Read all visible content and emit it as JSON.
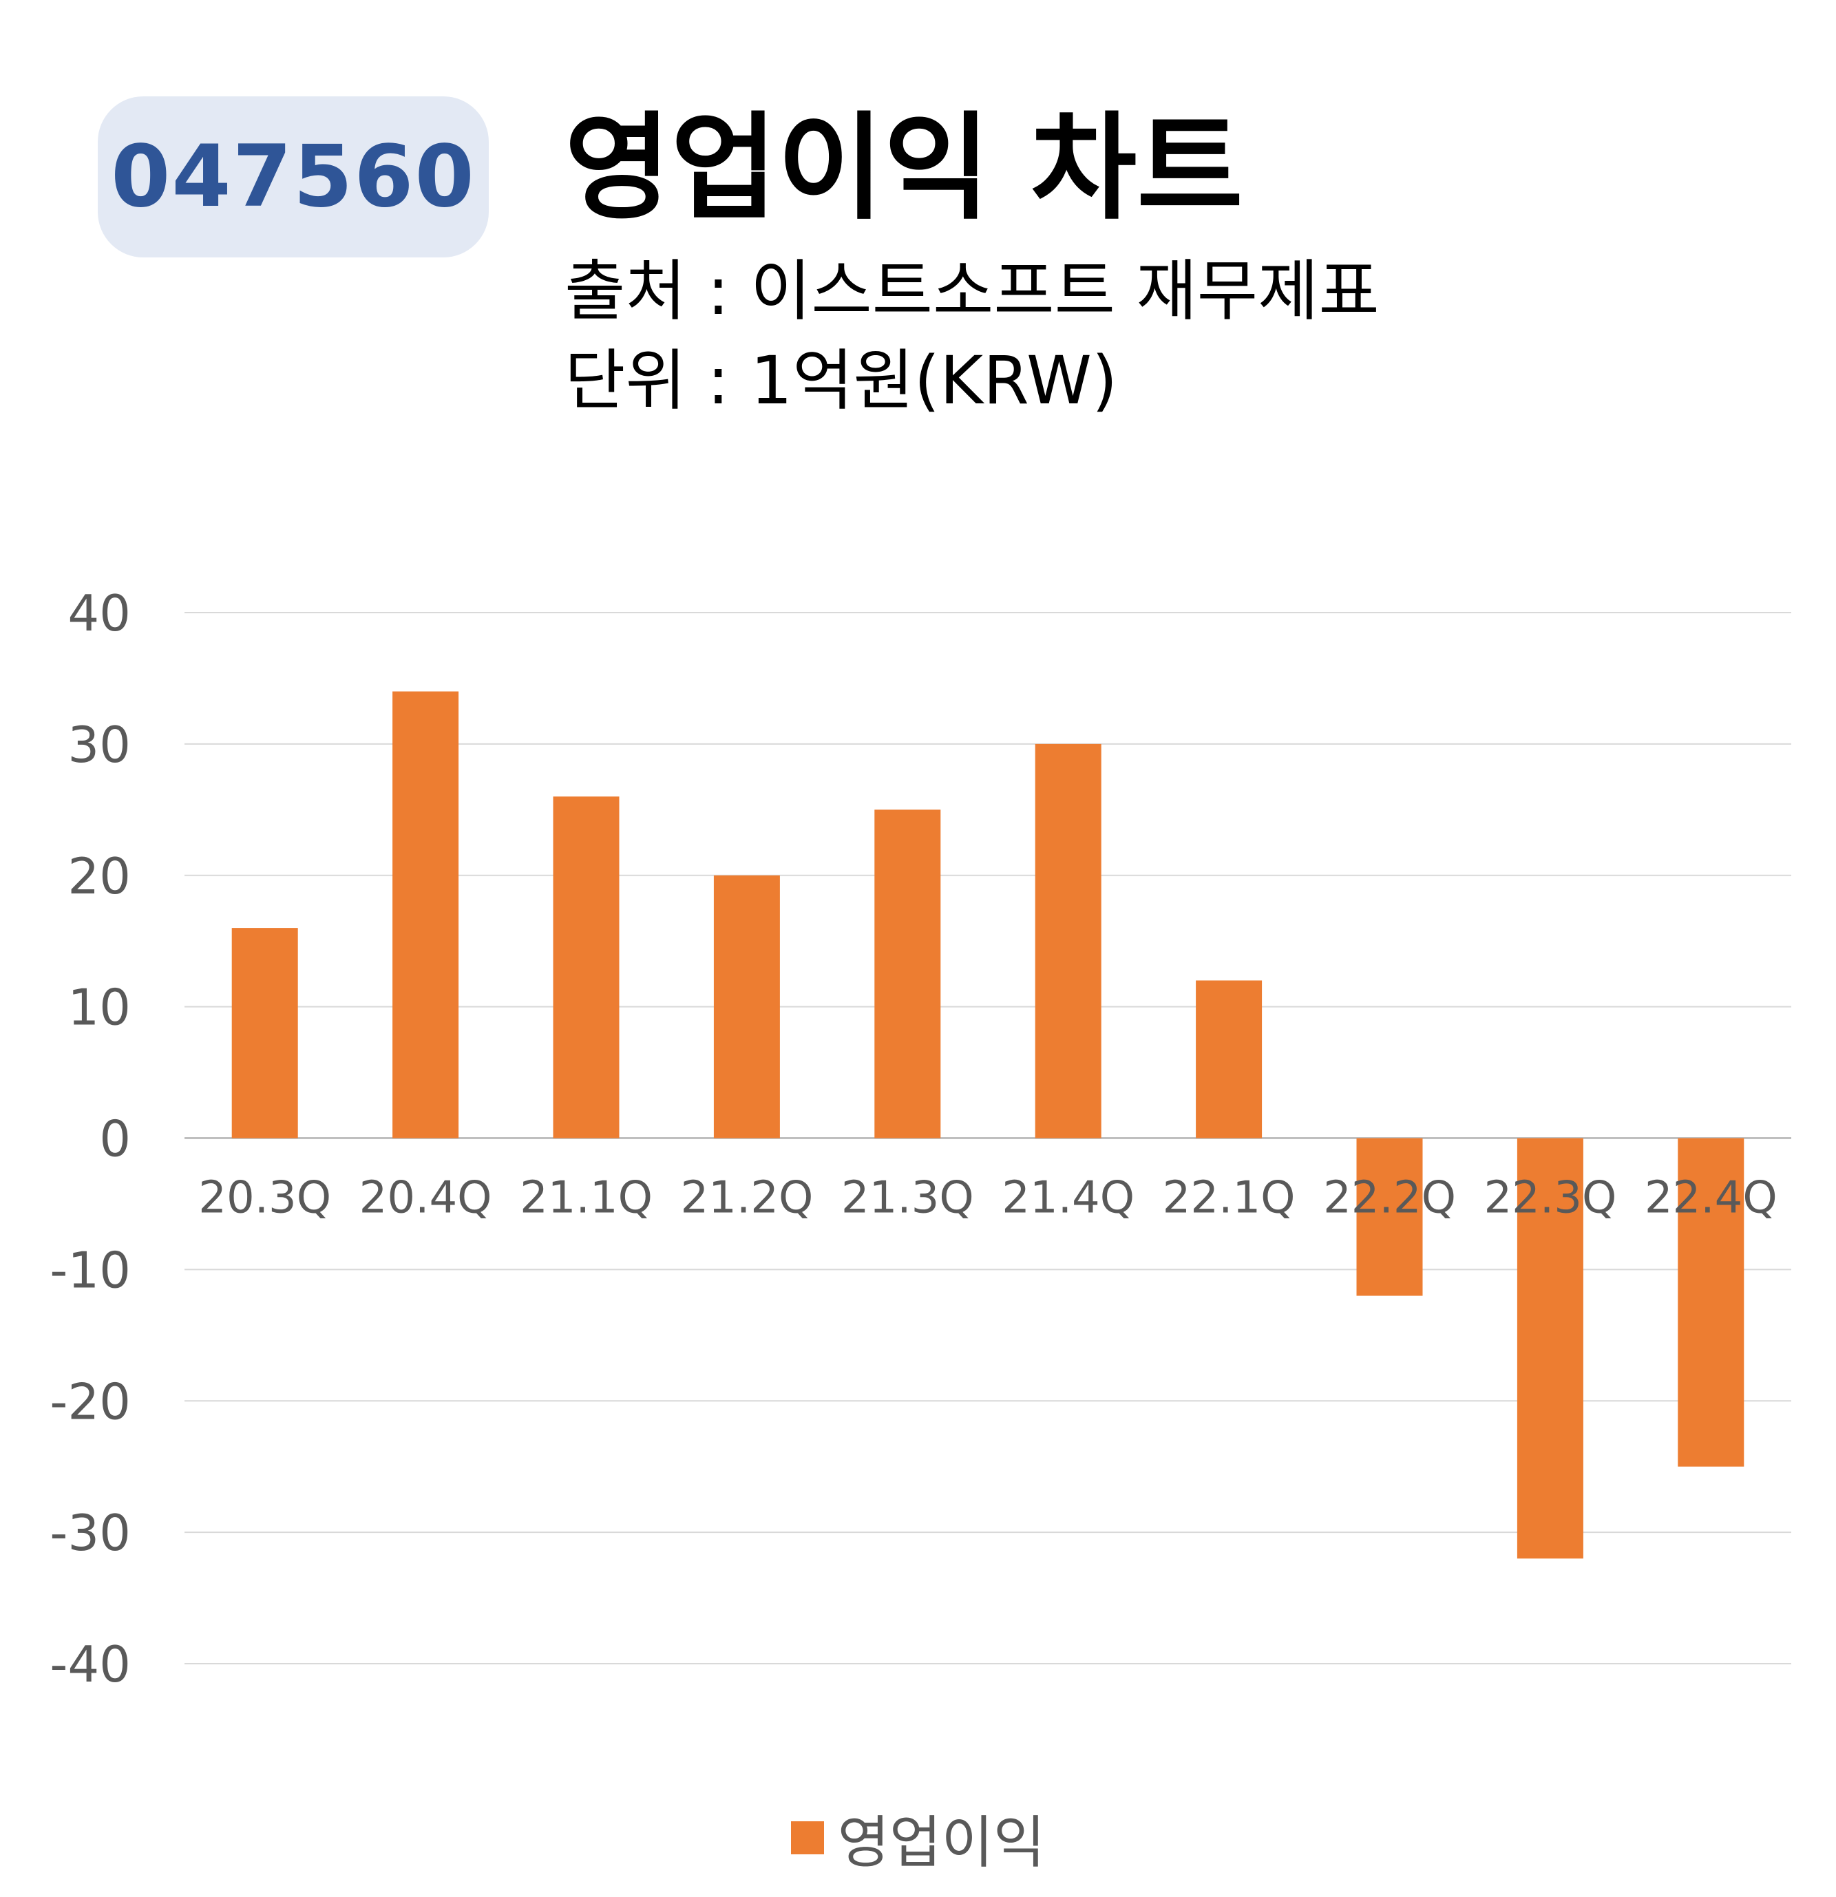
{
  "header": {
    "code": "047560",
    "title": "영업이익 차트",
    "source": "출처 : 이스트소프트 재무제표",
    "unit": "단위 : 1억원(KRW)"
  },
  "colors": {
    "bar": "#ed7d31",
    "badge_bg": "#e3e9f4",
    "badge_text": "#2f5597",
    "grid": "#d9d9d9",
    "tick_text": "#595959"
  },
  "chart_data": {
    "type": "bar",
    "categories": [
      "20.3Q",
      "20.4Q",
      "21.1Q",
      "21.2Q",
      "21.3Q",
      "21.4Q",
      "22.1Q",
      "22.2Q",
      "22.3Q",
      "22.4Q"
    ],
    "series": [
      {
        "name": "영업이익",
        "values": [
          16,
          34,
          26,
          20,
          25,
          30,
          12,
          -12,
          -32,
          -25
        ]
      }
    ],
    "yticks": [
      40,
      30,
      20,
      10,
      0,
      -10,
      -20,
      -30,
      -40
    ],
    "ylim": [
      -40,
      40
    ],
    "grid": true,
    "legend_position": "bottom"
  }
}
